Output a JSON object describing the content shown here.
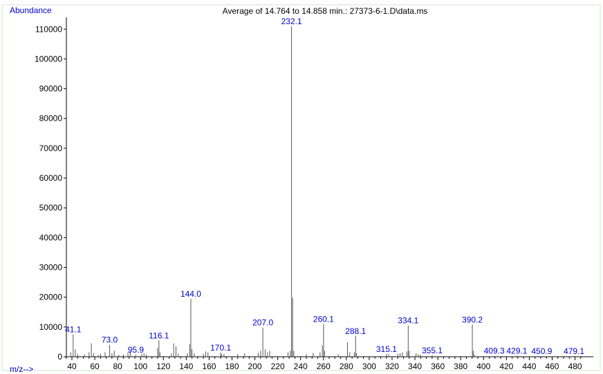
{
  "chart_data": {
    "type": "bar",
    "title": "Average of 14.764 to 14.858 min.: 27373-6-1.D\\data.ms",
    "ylabel": "Abundance",
    "xlabel": "m/z-->",
    "xlim": [
      30,
      490
    ],
    "ylim": [
      0,
      114000
    ],
    "x_ticks": [
      40,
      60,
      80,
      100,
      120,
      140,
      160,
      180,
      200,
      220,
      240,
      260,
      280,
      300,
      320,
      340,
      360,
      380,
      400,
      420,
      440,
      460,
      480
    ],
    "y_ticks": [
      0,
      10000,
      20000,
      30000,
      40000,
      50000,
      60000,
      70000,
      80000,
      90000,
      100000,
      110000
    ],
    "grid": false,
    "colors": {
      "bars": "#555555",
      "axis": "#000000",
      "labels": "#0000cc",
      "border": "#cfe6cf"
    },
    "labeled_peaks": [
      {
        "mz": 41.1,
        "abundance": 7500,
        "label": "41.1"
      },
      {
        "mz": 73.0,
        "abundance": 4000,
        "label": "73.0"
      },
      {
        "mz": 95.9,
        "abundance": 700,
        "label": "95.9"
      },
      {
        "mz": 116.1,
        "abundance": 5500,
        "label": "116.1"
      },
      {
        "mz": 144.0,
        "abundance": 19500,
        "label": "144.0"
      },
      {
        "mz": 170.1,
        "abundance": 1400,
        "label": "170.1"
      },
      {
        "mz": 207.0,
        "abundance": 9800,
        "label": "207.0"
      },
      {
        "mz": 232.1,
        "abundance": 111000,
        "label": "232.1"
      },
      {
        "mz": 260.1,
        "abundance": 11000,
        "label": "260.1"
      },
      {
        "mz": 288.1,
        "abundance": 7000,
        "label": "288.1"
      },
      {
        "mz": 315.1,
        "abundance": 900,
        "label": "315.1"
      },
      {
        "mz": 334.1,
        "abundance": 10500,
        "label": "334.1"
      },
      {
        "mz": 355.1,
        "abundance": 500,
        "label": "355.1"
      },
      {
        "mz": 390.2,
        "abundance": 10800,
        "label": "390.2"
      },
      {
        "mz": 409.3,
        "abundance": 300,
        "label": "409.3"
      },
      {
        "mz": 429.1,
        "abundance": 400,
        "label": "429.1"
      },
      {
        "mz": 450.9,
        "abundance": 200,
        "label": "450.9"
      },
      {
        "mz": 479.1,
        "abundance": 200,
        "label": "479.1"
      }
    ],
    "other_peaks": [
      {
        "mz": 39,
        "abundance": 1500
      },
      {
        "mz": 43,
        "abundance": 2500
      },
      {
        "mz": 45,
        "abundance": 1000
      },
      {
        "mz": 51,
        "abundance": 800
      },
      {
        "mz": 55,
        "abundance": 1500
      },
      {
        "mz": 57,
        "abundance": 4500
      },
      {
        "mz": 59,
        "abundance": 1200
      },
      {
        "mz": 63,
        "abundance": 600
      },
      {
        "mz": 65,
        "abundance": 1000
      },
      {
        "mz": 69,
        "abundance": 1500
      },
      {
        "mz": 75,
        "abundance": 1200
      },
      {
        "mz": 77,
        "abundance": 2000
      },
      {
        "mz": 81,
        "abundance": 700
      },
      {
        "mz": 85,
        "abundance": 800
      },
      {
        "mz": 89,
        "abundance": 1500
      },
      {
        "mz": 91,
        "abundance": 1800
      },
      {
        "mz": 101,
        "abundance": 900
      },
      {
        "mz": 103,
        "abundance": 1200
      },
      {
        "mz": 105,
        "abundance": 700
      },
      {
        "mz": 115,
        "abundance": 3000
      },
      {
        "mz": 117,
        "abundance": 1500
      },
      {
        "mz": 127,
        "abundance": 1200
      },
      {
        "mz": 129,
        "abundance": 4500
      },
      {
        "mz": 131,
        "abundance": 3500
      },
      {
        "mz": 133,
        "abundance": 1000
      },
      {
        "mz": 141,
        "abundance": 1200
      },
      {
        "mz": 143,
        "abundance": 4200
      },
      {
        "mz": 145,
        "abundance": 2500
      },
      {
        "mz": 147,
        "abundance": 1200
      },
      {
        "mz": 155,
        "abundance": 1000
      },
      {
        "mz": 157,
        "abundance": 1800
      },
      {
        "mz": 159,
        "abundance": 1500
      },
      {
        "mz": 171,
        "abundance": 900
      },
      {
        "mz": 173,
        "abundance": 1000
      },
      {
        "mz": 185,
        "abundance": 900
      },
      {
        "mz": 191,
        "abundance": 1200
      },
      {
        "mz": 203,
        "abundance": 1300
      },
      {
        "mz": 205,
        "abundance": 2000
      },
      {
        "mz": 209,
        "abundance": 2500
      },
      {
        "mz": 211,
        "abundance": 1500
      },
      {
        "mz": 213,
        "abundance": 2000
      },
      {
        "mz": 229,
        "abundance": 1500
      },
      {
        "mz": 231,
        "abundance": 2000
      },
      {
        "mz": 233,
        "abundance": 19800
      },
      {
        "mz": 234,
        "abundance": 2000
      },
      {
        "mz": 245,
        "abundance": 800
      },
      {
        "mz": 251,
        "abundance": 1300
      },
      {
        "mz": 257,
        "abundance": 1500
      },
      {
        "mz": 259,
        "abundance": 3800
      },
      {
        "mz": 261,
        "abundance": 2000
      },
      {
        "mz": 273,
        "abundance": 900
      },
      {
        "mz": 281,
        "abundance": 4800
      },
      {
        "mz": 283,
        "abundance": 1500
      },
      {
        "mz": 287,
        "abundance": 1500
      },
      {
        "mz": 289,
        "abundance": 1200
      },
      {
        "mz": 317,
        "abundance": 900
      },
      {
        "mz": 325,
        "abundance": 1000
      },
      {
        "mz": 327,
        "abundance": 1200
      },
      {
        "mz": 329,
        "abundance": 1500
      },
      {
        "mz": 333,
        "abundance": 1800
      },
      {
        "mz": 335,
        "abundance": 2000
      },
      {
        "mz": 341,
        "abundance": 1200
      },
      {
        "mz": 343,
        "abundance": 900
      },
      {
        "mz": 345,
        "abundance": 700
      },
      {
        "mz": 391,
        "abundance": 2000
      },
      {
        "mz": 392,
        "abundance": 700
      }
    ]
  }
}
